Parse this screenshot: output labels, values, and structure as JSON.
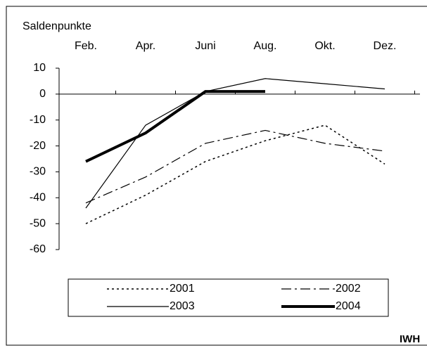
{
  "chart_data": {
    "type": "line",
    "y_label": "Saldenpunkte",
    "source": "IWH",
    "categories": [
      "Feb.",
      "Apr.",
      "Juni",
      "Aug.",
      "Okt.",
      "Dez."
    ],
    "ylim": [
      -60,
      10
    ],
    "yticks": [
      10,
      0,
      -10,
      -20,
      -30,
      -40,
      -50,
      -60
    ],
    "series": [
      {
        "name": "2001",
        "color": "#000000",
        "style": "dotted",
        "width": 1.5,
        "values": [
          -50,
          -39,
          -26,
          -18,
          -12,
          -27
        ]
      },
      {
        "name": "2002",
        "color": "#000000",
        "style": "dash-dot",
        "width": 1.2,
        "values": [
          -42,
          -32,
          -19,
          -14,
          -19,
          -22
        ]
      },
      {
        "name": "2003",
        "color": "#000000",
        "style": "solid",
        "width": 1.2,
        "values": [
          -44,
          -12,
          1,
          6,
          4,
          2
        ]
      },
      {
        "name": "2004",
        "color": "#000000",
        "style": "solid",
        "width": 4,
        "values": [
          -26,
          -15,
          1,
          1,
          null,
          null
        ]
      }
    ]
  }
}
